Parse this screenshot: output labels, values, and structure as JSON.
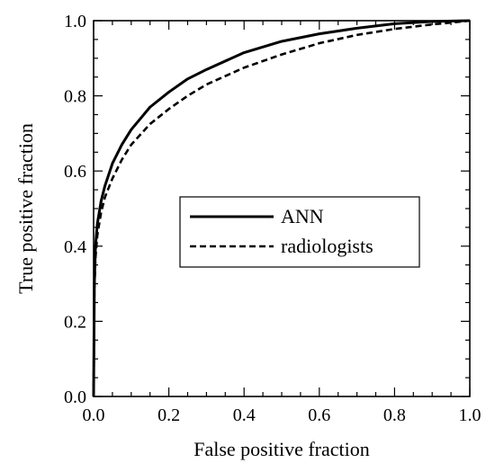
{
  "chart_data": {
    "type": "line",
    "title": "",
    "xlabel": "False positive fraction",
    "ylabel": "True positive fraction",
    "xlim": [
      0.0,
      1.0
    ],
    "ylim": [
      0.0,
      1.0
    ],
    "grid": false,
    "legend_position": "center-right",
    "x_ticks": [
      "0.0",
      "0.2",
      "0.4",
      "0.6",
      "0.8",
      "1.0"
    ],
    "y_ticks": [
      "0.0",
      "0.2",
      "0.4",
      "0.6",
      "0.8",
      "1.0"
    ],
    "series": [
      {
        "name": "ANN",
        "line_style": "solid",
        "color": "#000000",
        "x": [
          0.0,
          0.002,
          0.005,
          0.01,
          0.02,
          0.03,
          0.05,
          0.075,
          0.1,
          0.15,
          0.2,
          0.25,
          0.3,
          0.4,
          0.5,
          0.6,
          0.7,
          0.8,
          0.9,
          1.0
        ],
        "y": [
          0.0,
          0.3,
          0.4,
          0.46,
          0.52,
          0.56,
          0.62,
          0.67,
          0.71,
          0.77,
          0.81,
          0.845,
          0.87,
          0.915,
          0.945,
          0.965,
          0.98,
          0.992,
          0.998,
          1.0
        ]
      },
      {
        "name": "radiologists",
        "line_style": "dashed",
        "color": "#000000",
        "x": [
          0.0,
          0.002,
          0.005,
          0.01,
          0.02,
          0.03,
          0.05,
          0.075,
          0.1,
          0.15,
          0.2,
          0.25,
          0.3,
          0.4,
          0.5,
          0.6,
          0.7,
          0.8,
          0.9,
          1.0
        ],
        "y": [
          0.0,
          0.28,
          0.37,
          0.43,
          0.49,
          0.53,
          0.58,
          0.63,
          0.67,
          0.725,
          0.765,
          0.8,
          0.83,
          0.875,
          0.91,
          0.94,
          0.962,
          0.978,
          0.99,
          1.0
        ]
      }
    ]
  }
}
